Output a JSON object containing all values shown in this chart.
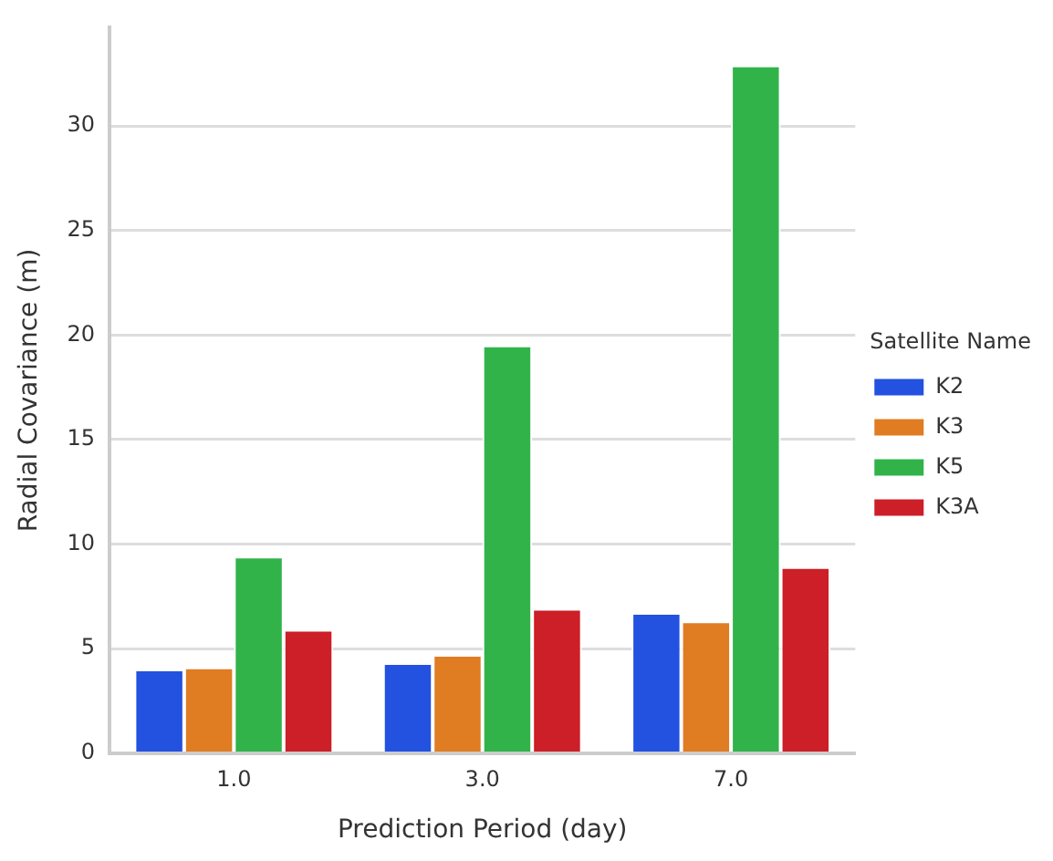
{
  "chart_data": {
    "type": "bar",
    "xlabel": "Prediction Period (day)",
    "ylabel": "Radial Covariance (m)",
    "legend_title": "Satellite Name",
    "categories": [
      "1.0",
      "3.0",
      "7.0"
    ],
    "series": [
      {
        "name": "K2",
        "color": "#2351e0",
        "values": [
          4.0,
          4.3,
          6.7
        ]
      },
      {
        "name": "K3",
        "color": "#e07c22",
        "values": [
          4.1,
          4.7,
          6.3
        ]
      },
      {
        "name": "K5",
        "color": "#31b34a",
        "values": [
          9.4,
          19.5,
          32.9
        ]
      },
      {
        "name": "K3A",
        "color": "#cc1f27",
        "values": [
          5.9,
          6.9,
          8.9
        ]
      }
    ],
    "ylim": [
      0,
      34.7
    ],
    "yticks": [
      0,
      5,
      10,
      15,
      20,
      25,
      30
    ],
    "grid": "y",
    "legend": "right"
  }
}
